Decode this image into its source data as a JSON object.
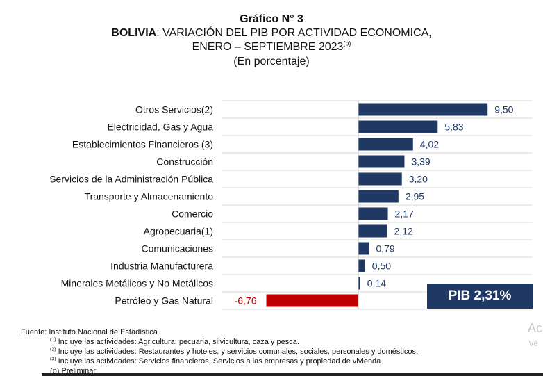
{
  "header": {
    "title_line1": "Gráfico N° 3",
    "title_country": "BOLIVIA",
    "title_line2_rest": ": VARIACIÓN DEL PIB POR ACTIVIDAD ECONOMICA,",
    "title_line3": "ENERO – SEPTIEMBRE 2023",
    "title_line3_sup": "(p)",
    "title_line4": "(En porcentaje)"
  },
  "chart_data": {
    "type": "bar",
    "orientation": "horizontal",
    "categories": [
      "Otros Servicios(2)",
      "Electricidad, Gas y Agua",
      "Establecimientos Financieros (3)",
      "Construcción",
      "Servicios de la Administración Pública",
      "Transporte y Almacenamiento",
      "Comercio",
      "Agropecuaria(1)",
      "Comunicaciones",
      "Industria Manufacturera",
      "Minerales Metálicos y No Metálicos",
      "Petróleo y Gas Natural"
    ],
    "values": [
      9.5,
      5.83,
      4.02,
      3.39,
      3.2,
      2.95,
      2.17,
      2.12,
      0.79,
      0.5,
      0.14,
      -6.76
    ],
    "labels": [
      "9,50",
      "5,83",
      "4,02",
      "3,39",
      "3,20",
      "2,95",
      "2,17",
      "2,12",
      "0,79",
      "0,50",
      "0,14",
      "-6,76"
    ],
    "xlim": [
      -10,
      12
    ],
    "grid": true,
    "colors": {
      "positive": "#1f3864",
      "negative": "#c00000",
      "grid": "#d9d9d9"
    }
  },
  "pib_box": {
    "label": "PIB 2,31%",
    "color": "#1f3864"
  },
  "footer": {
    "source": "Fuente: Instituto Nacional de Estadística",
    "notes": [
      {
        "mark": "(1)",
        "text": " Incluye las actividades: Agricultura, pecuaria, silvicultura, caza y pesca."
      },
      {
        "mark": "(2)",
        "text": " Incluye las actividades: Restaurantes y hoteles, y servicios comunales, sociales, personales y domésticos."
      },
      {
        "mark": "(3)",
        "text": " Incluye las actividades: Servicios financieros, Servicios a las empresas y propiedad de vivienda."
      }
    ],
    "preliminary": "(p) Preliminar"
  },
  "watermark": {
    "line1": "Ac",
    "line2": "Ve"
  }
}
